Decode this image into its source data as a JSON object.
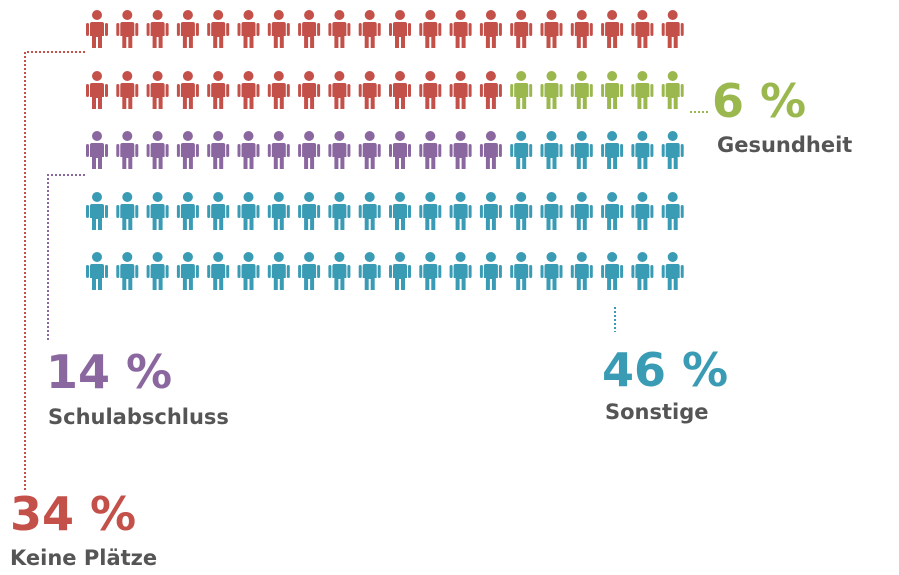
{
  "chart_data": {
    "type": "pictogram",
    "categories": [
      "Keine Plätze",
      "Gesundheit",
      "Schulabschluss",
      "Sonstige"
    ],
    "values": [
      34,
      6,
      14,
      46
    ],
    "value_labels": [
      "34 %",
      "6 %",
      "14 %",
      "46 %"
    ],
    "colors": [
      "#c4504a",
      "#9bb84f",
      "#8b67a0",
      "#3a9bb5"
    ]
  }
}
